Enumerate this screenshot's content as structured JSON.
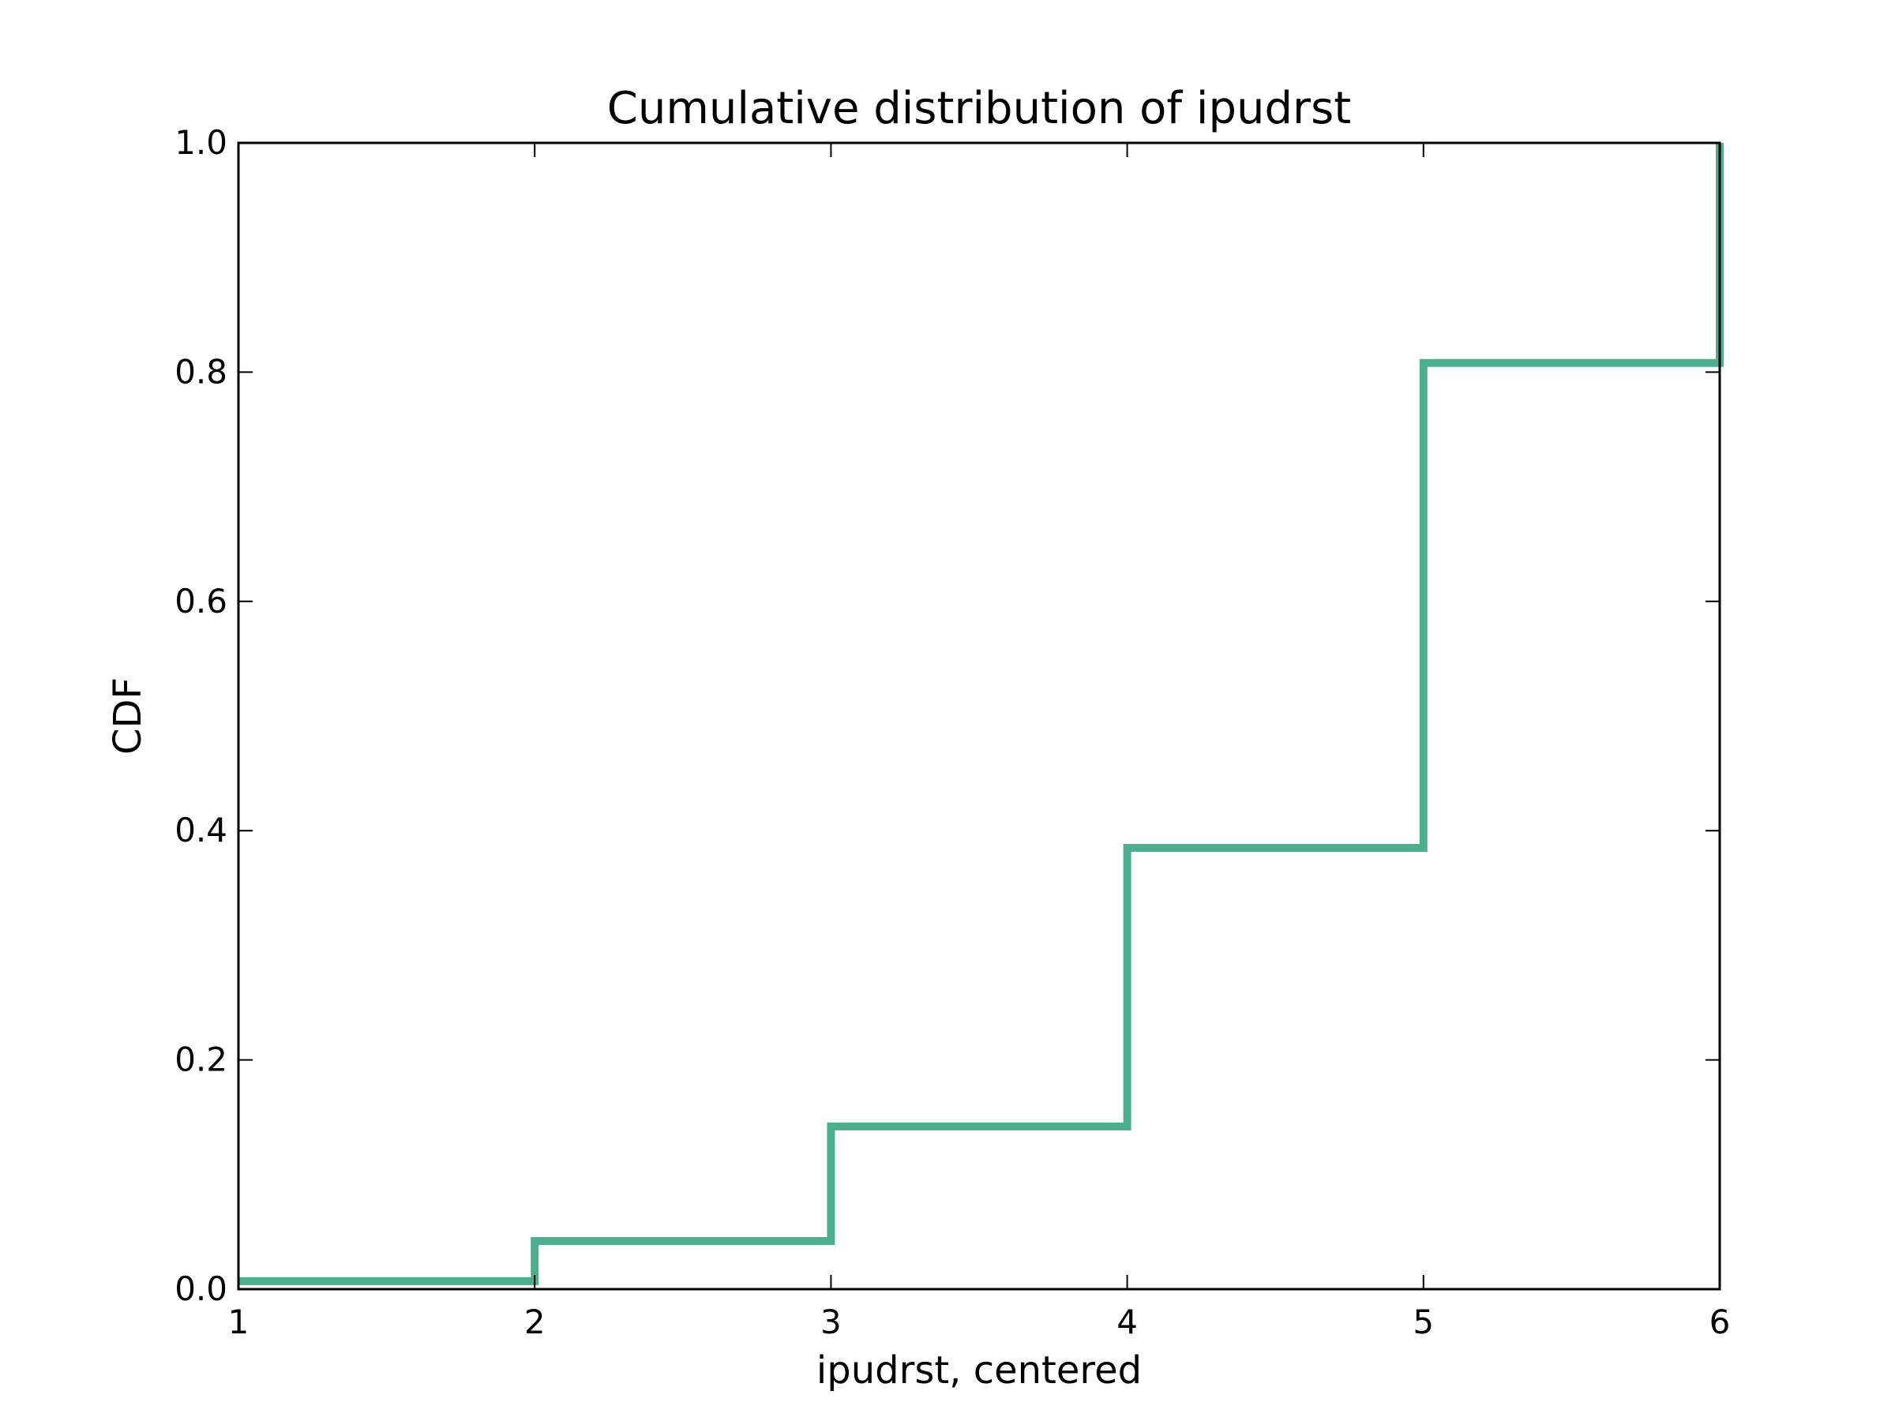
{
  "chart_data": {
    "type": "line",
    "step": true,
    "title": "Cumulative distribution of ipudrst",
    "xlabel": "ipudrst, centered",
    "ylabel": "CDF",
    "xlim": [
      1,
      6
    ],
    "ylim": [
      0.0,
      1.0
    ],
    "xticks": [
      "1",
      "2",
      "3",
      "4",
      "5",
      "6"
    ],
    "yticks": [
      "0.0",
      "0.2",
      "0.4",
      "0.6",
      "0.8",
      "1.0"
    ],
    "grid": false,
    "series": [
      {
        "color": "#4daf8f",
        "x": [
          1,
          2,
          3,
          4,
          5,
          6
        ],
        "y": [
          0.007,
          0.042,
          0.142,
          0.385,
          0.808,
          1.0
        ]
      }
    ]
  }
}
